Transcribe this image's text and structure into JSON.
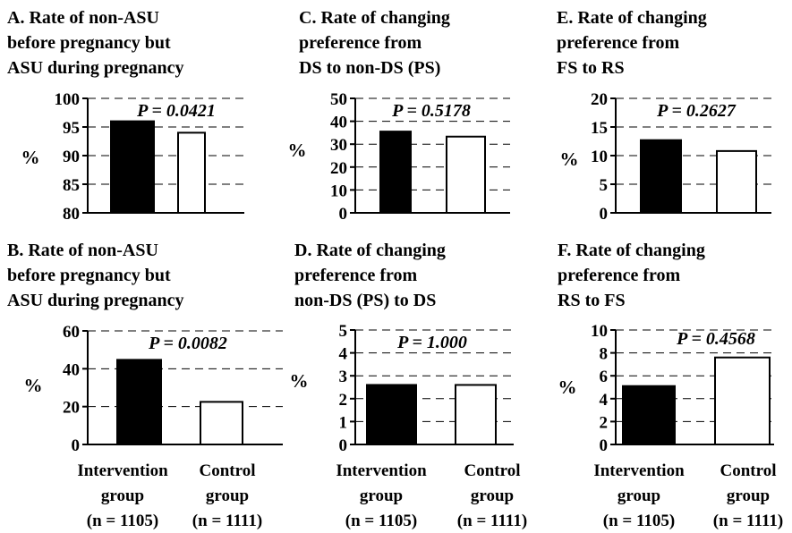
{
  "chart_data": [
    {
      "panel": "A",
      "type": "bar",
      "title_lines": [
        "A. Rate of non-ASU",
        "before pregnancy but",
        "ASU during pregnancy"
      ],
      "ylabel": "%",
      "categories": [
        "Intervention group (n = 1105)",
        "Control group (n = 1111)"
      ],
      "values": [
        96,
        94
      ],
      "ylim": [
        80,
        100
      ],
      "yticks": [
        80,
        85,
        90,
        95,
        100
      ],
      "annotation": "P = 0.0421",
      "grid": "dashed horizontal",
      "bar_fills": [
        "#000000",
        "#ffffff"
      ]
    },
    {
      "panel": "C",
      "type": "bar",
      "title_lines": [
        "C. Rate of changing",
        "preference from",
        "DS to non-DS (PS)"
      ],
      "ylabel": "%",
      "categories": [
        "Intervention group (n = 1105)",
        "Control group (n = 1111)"
      ],
      "values": [
        35.5,
        33.3
      ],
      "ylim": [
        0,
        50
      ],
      "yticks": [
        0,
        10,
        20,
        30,
        40,
        50
      ],
      "annotation": "P = 0.5178",
      "grid": "dashed horizontal",
      "bar_fills": [
        "#000000",
        "#ffffff"
      ]
    },
    {
      "panel": "E",
      "type": "bar",
      "title_lines": [
        "E. Rate of changing",
        "preference from",
        "FS to RS"
      ],
      "ylabel": "%",
      "categories": [
        "Intervention group (n = 1105)",
        "Control group (n = 1111)"
      ],
      "values": [
        12.7,
        10.8
      ],
      "ylim": [
        0,
        20
      ],
      "yticks": [
        0,
        5,
        10,
        15,
        20
      ],
      "annotation": "P = 0.2627",
      "grid": "dashed horizontal",
      "bar_fills": [
        "#000000",
        "#ffffff"
      ]
    },
    {
      "panel": "B",
      "type": "bar",
      "title_lines": [
        "B. Rate of non-ASU",
        "before pregnancy but",
        "ASU during pregnancy"
      ],
      "ylabel": "%",
      "categories": [
        "Intervention group (n = 1105)",
        "Control group (n = 1111)"
      ],
      "values": [
        44.7,
        22.5
      ],
      "ylim": [
        0,
        60
      ],
      "yticks": [
        0,
        20,
        40,
        60
      ],
      "annotation": "P = 0.0082",
      "grid": "dashed horizontal",
      "bar_fills": [
        "#000000",
        "#ffffff"
      ]
    },
    {
      "panel": "D",
      "type": "bar",
      "title_lines": [
        "D. Rate of changing",
        "preference from",
        "non-DS (PS) to DS"
      ],
      "ylabel": "%",
      "categories": [
        "Intervention group (n = 1105)",
        "Control group (n = 1111)"
      ],
      "values": [
        2.6,
        2.6
      ],
      "ylim": [
        0,
        5
      ],
      "yticks": [
        0,
        1,
        2,
        3,
        4,
        5
      ],
      "annotation": "P = 1.000",
      "grid": "dashed horizontal",
      "bar_fills": [
        "#000000",
        "#ffffff"
      ]
    },
    {
      "panel": "F",
      "type": "bar",
      "title_lines": [
        "F. Rate of changing",
        "preference from",
        "RS to FS"
      ],
      "ylabel": "%",
      "categories": [
        "Intervention group (n = 1105)",
        "Control group (n = 1111)"
      ],
      "values": [
        5.1,
        7.6
      ],
      "ylim": [
        0,
        10
      ],
      "yticks": [
        0,
        2,
        4,
        6,
        8,
        10
      ],
      "annotation": "P = 0.4568",
      "grid": "dashed horizontal",
      "bar_fills": [
        "#000000",
        "#ffffff"
      ]
    }
  ],
  "x_axis_labels": {
    "left": {
      "intervention": [
        "Intervention",
        "group",
        "(n = 1105)"
      ],
      "control": [
        "Control",
        "group",
        "(n = 1111)"
      ]
    },
    "middle": {
      "intervention": [
        "Intervention",
        "group",
        "(n = 1105)"
      ],
      "control": [
        "Control",
        "group",
        "(n = 1111)"
      ]
    },
    "right": {
      "intervention": [
        "Intervention",
        "group",
        "(n = 1105)"
      ],
      "control": [
        "Control",
        "group",
        "(n = 1111)"
      ]
    }
  }
}
